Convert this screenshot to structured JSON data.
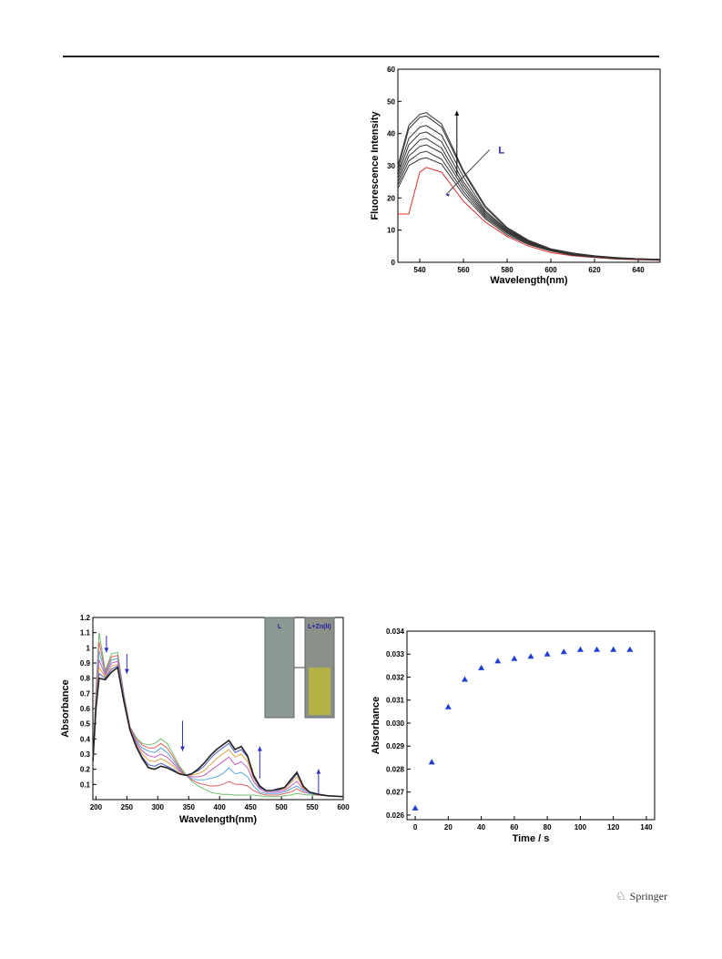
{
  "footer": {
    "publisher": "Springer"
  },
  "chart_data": [
    {
      "id": "fluorescence",
      "type": "line",
      "title": "",
      "xlabel": "Wavelength(nm)",
      "ylabel": "Fluorescence Intensity",
      "xlim": [
        530,
        650
      ],
      "ylim": [
        0,
        60
      ],
      "xticks": [
        540,
        560,
        580,
        600,
        620,
        640
      ],
      "yticks": [
        0,
        10,
        20,
        30,
        40,
        50,
        60
      ],
      "annotation": "L",
      "colors": {
        "ligand": "#e03030",
        "titration": "#333333",
        "annotation": "#2020a0"
      },
      "x": [
        530,
        535,
        540,
        543,
        550,
        560,
        570,
        580,
        590,
        600,
        610,
        620,
        630,
        640,
        650
      ],
      "series": [
        {
          "name": "L",
          "values": [
            15,
            15,
            28,
            29.5,
            28,
            19,
            12.5,
            8,
            5,
            3,
            2,
            1.5,
            1,
            0.8,
            0.6
          ]
        },
        {
          "values": [
            23,
            30,
            32,
            32.5,
            30.5,
            21,
            13.5,
            8.5,
            5.5,
            3.5,
            2.2,
            1.6,
            1.1,
            0.9,
            0.7
          ]
        },
        {
          "values": [
            24,
            31.5,
            34,
            34.5,
            32,
            22,
            14,
            9,
            5.7,
            3.6,
            2.3,
            1.7,
            1.2,
            0.9,
            0.7
          ]
        },
        {
          "values": [
            25,
            33,
            36,
            36.5,
            34,
            23,
            14.5,
            9.3,
            5.9,
            3.7,
            2.4,
            1.8,
            1.2,
            1,
            0.8
          ]
        },
        {
          "values": [
            26,
            34.5,
            38,
            38.5,
            35.5,
            24,
            15,
            9.6,
            6,
            3.8,
            2.5,
            1.8,
            1.3,
            1,
            0.8
          ]
        },
        {
          "values": [
            27,
            36.5,
            40,
            40.5,
            37.5,
            25,
            15.5,
            9.9,
            6.2,
            3.9,
            2.6,
            1.9,
            1.3,
            1,
            0.8
          ]
        },
        {
          "values": [
            28,
            38.5,
            42,
            42.5,
            39.5,
            26.5,
            16,
            10.2,
            6.4,
            4,
            2.7,
            1.9,
            1.4,
            1.1,
            0.8
          ]
        },
        {
          "values": [
            29,
            41.5,
            45,
            45.5,
            42,
            28,
            17,
            10.5,
            6.6,
            4.1,
            2.8,
            2,
            1.4,
            1.1,
            0.9
          ]
        },
        {
          "values": [
            30,
            42.5,
            46,
            46.5,
            43,
            28.5,
            17.5,
            10.8,
            6.8,
            4.2,
            2.9,
            2,
            1.5,
            1.1,
            0.9
          ]
        }
      ]
    },
    {
      "id": "uvvis",
      "type": "line",
      "title": "",
      "xlabel": "Wavelength(nm)",
      "ylabel": "Absorbance",
      "xlim": [
        195,
        600
      ],
      "ylim": [
        0,
        1.2
      ],
      "xticks": [
        200,
        250,
        300,
        350,
        400,
        450,
        500,
        550,
        600
      ],
      "yticks": [
        0.1,
        0.2,
        0.3,
        0.4,
        0.5,
        0.6,
        0.7,
        0.8,
        0.9,
        1.0,
        1.1,
        1.2
      ],
      "inset_labels": [
        "L",
        "L+Zn(II)"
      ],
      "colors": {
        "arrow": "#3030c0",
        "inset_left": "#8d9a93",
        "inset_right": "#b5b248"
      },
      "x": [
        195,
        200,
        205,
        215,
        225,
        235,
        245,
        255,
        265,
        275,
        285,
        295,
        305,
        315,
        325,
        335,
        345,
        355,
        365,
        375,
        385,
        395,
        405,
        415,
        425,
        435,
        445,
        455,
        465,
        475,
        485,
        495,
        505,
        515,
        525,
        535,
        545,
        560,
        575,
        600
      ],
      "series": [
        {
          "values": [
            0.25,
            0.72,
            1.1,
            0.85,
            0.96,
            0.97,
            0.7,
            0.48,
            0.41,
            0.37,
            0.36,
            0.37,
            0.4,
            0.37,
            0.3,
            0.22,
            0.17,
            0.12,
            0.09,
            0.07,
            0.05,
            0.04,
            0.035,
            0.035,
            0.03,
            0.03,
            0.03,
            0.03,
            0.025,
            0.02,
            0.02,
            0.02,
            0.025,
            0.03,
            0.04,
            0.035,
            0.03,
            0.03,
            0.025,
            0.02
          ]
        },
        {
          "values": [
            0.25,
            0.7,
            1.04,
            0.84,
            0.94,
            0.95,
            0.69,
            0.48,
            0.4,
            0.36,
            0.34,
            0.34,
            0.37,
            0.34,
            0.28,
            0.21,
            0.16,
            0.13,
            0.11,
            0.1,
            0.09,
            0.09,
            0.1,
            0.12,
            0.1,
            0.1,
            0.09,
            0.06,
            0.04,
            0.03,
            0.03,
            0.03,
            0.04,
            0.05,
            0.07,
            0.05,
            0.04,
            0.03,
            0.025,
            0.02
          ]
        },
        {
          "values": [
            0.25,
            0.68,
            0.98,
            0.83,
            0.92,
            0.93,
            0.68,
            0.47,
            0.39,
            0.34,
            0.32,
            0.31,
            0.34,
            0.31,
            0.26,
            0.2,
            0.16,
            0.14,
            0.13,
            0.13,
            0.14,
            0.15,
            0.17,
            0.21,
            0.17,
            0.18,
            0.15,
            0.09,
            0.05,
            0.04,
            0.04,
            0.04,
            0.05,
            0.07,
            0.09,
            0.06,
            0.04,
            0.035,
            0.025,
            0.02
          ]
        },
        {
          "values": [
            0.25,
            0.66,
            0.92,
            0.82,
            0.9,
            0.91,
            0.67,
            0.47,
            0.38,
            0.32,
            0.29,
            0.28,
            0.3,
            0.28,
            0.24,
            0.19,
            0.16,
            0.15,
            0.15,
            0.16,
            0.19,
            0.22,
            0.25,
            0.28,
            0.23,
            0.25,
            0.21,
            0.12,
            0.07,
            0.05,
            0.05,
            0.05,
            0.06,
            0.09,
            0.12,
            0.07,
            0.05,
            0.035,
            0.025,
            0.02
          ]
        },
        {
          "values": [
            0.25,
            0.64,
            0.87,
            0.81,
            0.88,
            0.89,
            0.66,
            0.46,
            0.37,
            0.3,
            0.26,
            0.25,
            0.27,
            0.25,
            0.22,
            0.18,
            0.16,
            0.16,
            0.17,
            0.19,
            0.23,
            0.27,
            0.3,
            0.33,
            0.28,
            0.3,
            0.25,
            0.14,
            0.08,
            0.06,
            0.06,
            0.06,
            0.07,
            0.11,
            0.15,
            0.08,
            0.05,
            0.035,
            0.025,
            0.02
          ]
        },
        {
          "values": [
            0.25,
            0.62,
            0.83,
            0.8,
            0.86,
            0.88,
            0.66,
            0.46,
            0.36,
            0.28,
            0.23,
            0.22,
            0.24,
            0.22,
            0.2,
            0.17,
            0.16,
            0.17,
            0.19,
            0.22,
            0.27,
            0.31,
            0.34,
            0.37,
            0.31,
            0.33,
            0.28,
            0.15,
            0.08,
            0.06,
            0.06,
            0.06,
            0.08,
            0.12,
            0.17,
            0.09,
            0.05,
            0.035,
            0.025,
            0.02
          ]
        },
        {
          "values": [
            0.25,
            0.6,
            0.8,
            0.79,
            0.84,
            0.87,
            0.65,
            0.46,
            0.35,
            0.27,
            0.21,
            0.2,
            0.22,
            0.21,
            0.19,
            0.17,
            0.16,
            0.17,
            0.2,
            0.24,
            0.29,
            0.33,
            0.36,
            0.39,
            0.33,
            0.35,
            0.29,
            0.16,
            0.09,
            0.06,
            0.06,
            0.07,
            0.08,
            0.13,
            0.18,
            0.09,
            0.05,
            0.035,
            0.025,
            0.02
          ]
        }
      ]
    },
    {
      "id": "kinetics",
      "type": "scatter",
      "title": "",
      "xlabel": "Time / s",
      "ylabel": "Absorbance",
      "xlim": [
        -5,
        145
      ],
      "ylim": [
        0.0258,
        0.034
      ],
      "xticks": [
        0,
        20,
        40,
        60,
        80,
        100,
        120,
        140
      ],
      "yticks": [
        0.026,
        0.027,
        0.028,
        0.029,
        0.03,
        0.031,
        0.032,
        0.033,
        0.034
      ],
      "ytick_labels": [
        "0.026",
        "0.027",
        "0.028",
        "0.029",
        "0.030",
        "0.031",
        "0.032",
        "0.033",
        "0.034"
      ],
      "colors": {
        "marker": "#1f3fd0"
      },
      "x": [
        0,
        10,
        20,
        30,
        40,
        50,
        60,
        70,
        80,
        90,
        100,
        110,
        120,
        130
      ],
      "y": [
        0.0263,
        0.0283,
        0.0307,
        0.0319,
        0.0324,
        0.0327,
        0.0328,
        0.0329,
        0.033,
        0.0331,
        0.0332,
        0.0332,
        0.0332,
        0.0332
      ]
    }
  ]
}
